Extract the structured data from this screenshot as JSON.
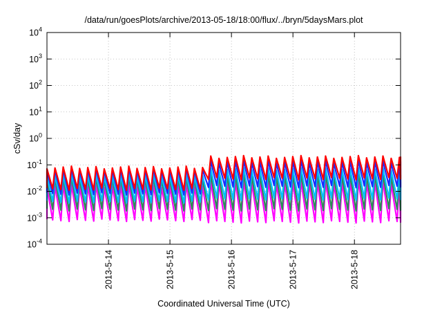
{
  "chart_data": {
    "type": "line",
    "title": "/data/run/goesPlots/archive/2013-05-18/18:00/flux/../bryn/5daysMars.plot",
    "xlabel": "Coordinated Universal Time (UTC)",
    "ylabel": "cSv/day",
    "yscale": "log",
    "ylim": [
      0.0001,
      10000
    ],
    "y_ticks": [
      {
        "base": "10",
        "exp": "-4",
        "value": 0.0001
      },
      {
        "base": "10",
        "exp": "-3",
        "value": 0.001
      },
      {
        "base": "10",
        "exp": "-2",
        "value": 0.01
      },
      {
        "base": "10",
        "exp": "-1",
        "value": 0.1
      },
      {
        "base": "10",
        "exp": "0",
        "value": 1
      },
      {
        "base": "10",
        "exp": "1",
        "value": 10
      },
      {
        "base": "10",
        "exp": "2",
        "value": 100
      },
      {
        "base": "10",
        "exp": "3",
        "value": 1000
      },
      {
        "base": "10",
        "exp": "4",
        "value": 10000
      }
    ],
    "xlim": [
      "2013-05-13T00:00",
      "2013-05-18T18:00"
    ],
    "x_ticks": [
      {
        "label": "2013-5-14",
        "value": "2013-05-14T00:00"
      },
      {
        "label": "2013-5-15",
        "value": "2013-05-15T00:00"
      },
      {
        "label": "2013-5-16",
        "value": "2013-05-16T00:00"
      },
      {
        "label": "2013-5-17",
        "value": "2013-05-17T00:00"
      },
      {
        "label": "2013-5-18",
        "value": "2013-05-18T00:00"
      }
    ],
    "grid": true,
    "legend": "none",
    "oscillation_period_hours": 3.2,
    "series": [
      {
        "color": "#ff0000",
        "peak_before": 0.08,
        "peak_after": 0.2,
        "trough_before": 0.012,
        "trough_after": 0.03
      },
      {
        "color": "#1a2aff",
        "peak_before": 0.065,
        "peak_after": 0.13,
        "trough_before": 0.008,
        "trough_after": 0.015
      },
      {
        "color": "#00bfff",
        "peak_before": 0.04,
        "peak_after": 0.07,
        "trough_before": 0.004,
        "trough_after": 0.005
      },
      {
        "color": "#2e8b57",
        "peak_before": 0.03,
        "peak_after": 0.04,
        "trough_before": 0.002,
        "trough_after": 0.002
      },
      {
        "color": "#ff00ff",
        "peak_before": 0.016,
        "peak_after": 0.022,
        "trough_before": 0.0008,
        "trough_after": 0.0007
      }
    ],
    "regime_change": "2013-05-15T15:00"
  }
}
